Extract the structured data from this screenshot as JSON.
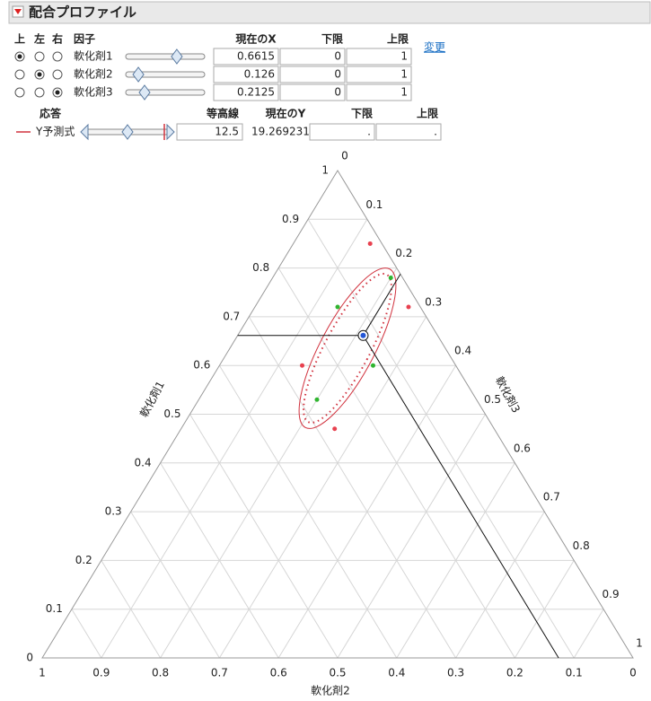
{
  "header": {
    "title": "配合プロファイル"
  },
  "factors": {
    "columns": [
      "上",
      "左",
      "右",
      "因子",
      "現在のX",
      "下限",
      "上限"
    ],
    "change_link": "変更",
    "rows": [
      {
        "name": "軟化剤1",
        "checked": [
          true,
          false,
          false
        ],
        "current": 0.6615,
        "lower": 0,
        "upper": 1
      },
      {
        "name": "軟化剤2",
        "checked": [
          false,
          true,
          false
        ],
        "current": 0.126,
        "lower": 0,
        "upper": 1
      },
      {
        "name": "軟化剤3",
        "checked": [
          false,
          false,
          true
        ],
        "current": 0.2125,
        "lower": 0,
        "upper": 1
      }
    ]
  },
  "response": {
    "columns": [
      "応答",
      "等高線",
      "現在のY",
      "下限",
      "上限"
    ],
    "name": "Y予測式",
    "color": "#d1323e",
    "contour": 12.5,
    "current_y": 19.269231,
    "lower": ".",
    "upper": "."
  },
  "chart_data": {
    "type": "ternary",
    "axes": [
      "軟化剤1",
      "軟化剤2",
      "軟化剤3"
    ],
    "ticks": [
      0,
      0.1,
      0.2,
      0.3,
      0.4,
      0.5,
      0.6,
      0.7,
      0.8,
      0.9,
      1
    ],
    "grid": true,
    "design_points": [
      {
        "color": "#e8414f",
        "points": [
          [
            0.85,
            0.02,
            0.13
          ],
          [
            0.72,
            0.02,
            0.26
          ],
          [
            0.6,
            0.26,
            0.14
          ],
          [
            0.47,
            0.27,
            0.26
          ]
        ]
      },
      {
        "color": "#2fb52f",
        "points": [
          [
            0.78,
            0.02,
            0.2
          ],
          [
            0.72,
            0.14,
            0.14
          ],
          [
            0.6,
            0.14,
            0.26
          ],
          [
            0.53,
            0.27,
            0.2
          ]
        ]
      }
    ]
  }
}
